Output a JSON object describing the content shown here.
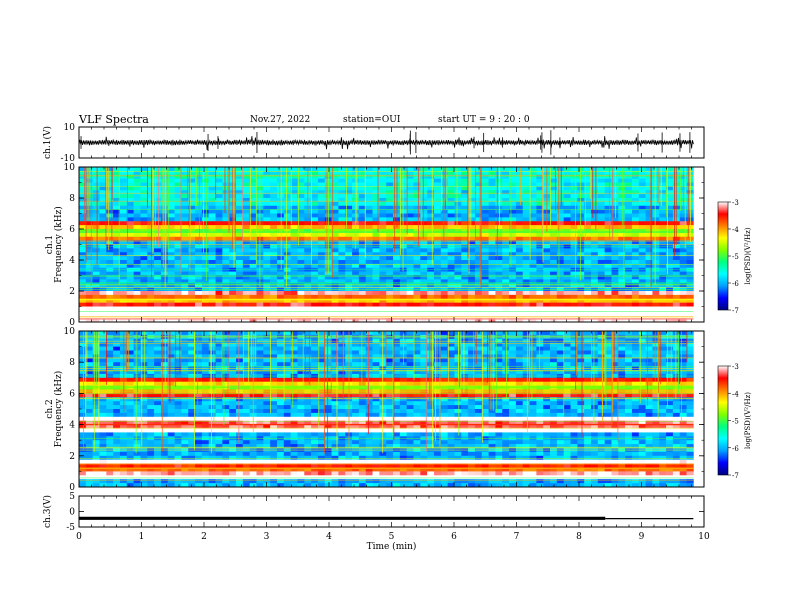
{
  "header": {
    "title": "VLF Spectra",
    "date": "Nov.27, 2022",
    "station": "station=OUI",
    "start_ut": "start  UT =   9 : 20 : 0"
  },
  "chart_data": [
    {
      "type": "line",
      "panel": "ch1-waveform",
      "ylabel": "ch.1(V)",
      "ylim": [
        -10,
        10
      ],
      "yticks": [
        "10",
        "-10"
      ],
      "x_range_min": [
        0,
        9.83
      ],
      "xlim": [
        0,
        10
      ],
      "color": "#000000"
    },
    {
      "type": "heatmap",
      "panel": "ch1-spectrogram",
      "ylabel": "ch.1\nFrequency (kHz)",
      "ylim": [
        0,
        10
      ],
      "yticks": [
        "0",
        "2",
        "4",
        "6",
        "8",
        "10"
      ],
      "xlim": [
        0,
        10
      ],
      "data_x_range_min": [
        0,
        9.83
      ],
      "colorbar": {
        "label": "log(PSD)(V²/Hz)",
        "range": [
          -7,
          -3
        ],
        "ticks": [
          "-3",
          "-4",
          "-5",
          "-6",
          "-7"
        ],
        "colormap": [
          "#000080",
          "#0000ff",
          "#00a0ff",
          "#00ffff",
          "#00ff80",
          "#80ff00",
          "#ffff00",
          "#ff8000",
          "#ff0000",
          "#ffffff"
        ]
      },
      "features": [
        {
          "kind": "band",
          "freq_khz": 1.45,
          "level": -4.3
        },
        {
          "kind": "band",
          "freq_khz": 0.2,
          "level": -3.2
        },
        {
          "kind": "band",
          "freq_khz": 5.8,
          "level": -5.0
        },
        {
          "kind": "noise_floor",
          "level": -6.0
        }
      ]
    },
    {
      "type": "heatmap",
      "panel": "ch2-spectrogram",
      "ylabel": "ch.2\nFrequency (kHz)",
      "ylim": [
        0,
        10
      ],
      "yticks": [
        "0",
        "2",
        "4",
        "6",
        "8",
        "10"
      ],
      "xlim": [
        0,
        10
      ],
      "data_x_range_min": [
        0,
        9.83
      ],
      "colorbar": {
        "label": "log(PSD)(V²/Hz)",
        "range": [
          -7,
          -3
        ],
        "ticks": [
          "-3",
          "-4",
          "-5",
          "-6",
          "-7"
        ],
        "colormap": [
          "#000080",
          "#0000ff",
          "#00a0ff",
          "#00ffff",
          "#00ff80",
          "#80ff00",
          "#ffff00",
          "#ff8000",
          "#ff0000",
          "#ffffff"
        ]
      },
      "features": [
        {
          "kind": "band",
          "freq_khz": 6.4,
          "level": -4.8
        },
        {
          "kind": "band",
          "freq_khz": 4.0,
          "level": -3.6
        },
        {
          "kind": "band",
          "freq_khz": 1.2,
          "level": -4.0
        },
        {
          "kind": "noise_floor",
          "level": -6.0
        }
      ]
    },
    {
      "type": "line",
      "panel": "ch3-signal",
      "ylabel": "ch.3(V)",
      "ylim": [
        -5,
        5
      ],
      "yticks": [
        "5",
        "0",
        "-5"
      ],
      "xlim": [
        0,
        10
      ],
      "xlabel": "Time (min)",
      "xticks": [
        "0",
        "1",
        "2",
        "3",
        "4",
        "5",
        "6",
        "7",
        "8",
        "9",
        "10"
      ],
      "series": [
        {
          "x": [
            0,
            8.42
          ],
          "y": [
            -2.2,
            -2.2
          ],
          "width": "thick"
        },
        {
          "x": [
            8.42,
            9.83
          ],
          "y": [
            -2.3,
            -2.3
          ],
          "width": "thin"
        }
      ]
    }
  ]
}
